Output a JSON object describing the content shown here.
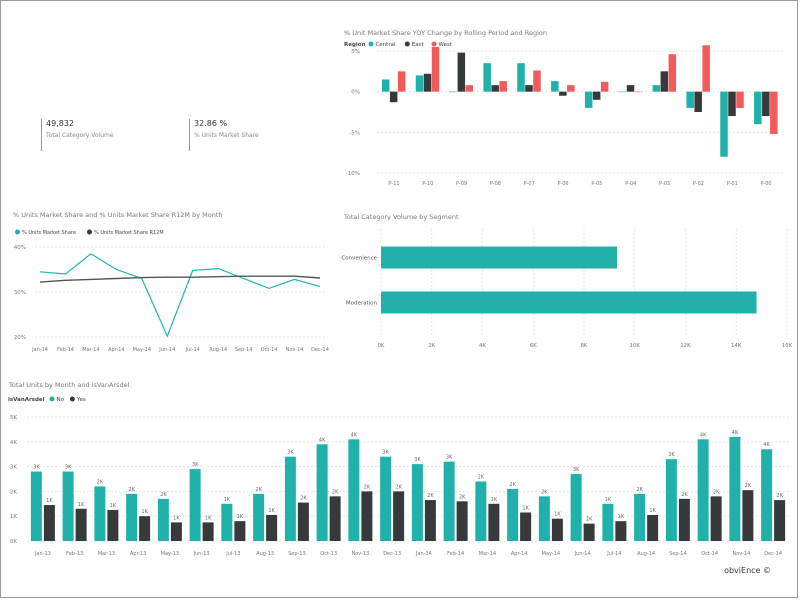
{
  "kpis": [
    {
      "value": "49,832",
      "label": "Total Category Volume"
    },
    {
      "value": "32.86 %",
      "label": "% Units Market Share"
    }
  ],
  "footer": "obviEnce ©",
  "colors": {
    "teal": "#20b2aa",
    "dark": "#373a3a",
    "red": "#f25b5b",
    "gray": "#555555",
    "grid": "#e1e1e1",
    "axis": "#777777"
  },
  "chart_data": [
    {
      "id": "yoy",
      "type": "bar",
      "title": "% Unit Market Share YOY Change by Rolling Period and Region",
      "legend_title": "Region",
      "legend_position": "top-left",
      "categories": [
        "P-11",
        "P-10",
        "P-09",
        "P-08",
        "P-07",
        "P-06",
        "P-05",
        "P-04",
        "P-03",
        "P-02",
        "P-01",
        "P-00"
      ],
      "series": [
        {
          "name": "Central",
          "values": [
            1.5,
            2.0,
            0.0,
            3.5,
            3.5,
            1.3,
            -2.0,
            0.0,
            0.8,
            -2.0,
            -8.0,
            -4.0
          ]
        },
        {
          "name": "East",
          "values": [
            -1.3,
            2.2,
            4.8,
            0.8,
            0.8,
            -0.5,
            -1.0,
            0.8,
            2.5,
            -2.5,
            -3.0,
            -3.0
          ]
        },
        {
          "name": "West",
          "values": [
            2.5,
            5.5,
            0.8,
            1.3,
            2.6,
            0.8,
            1.2,
            0.0,
            4.6,
            5.7,
            -2.0,
            -5.2
          ]
        }
      ],
      "yticks": [
        "5%",
        "0%",
        "-5%",
        "-10%"
      ],
      "ylim": [
        -10,
        5
      ],
      "grid": true
    },
    {
      "id": "share",
      "type": "line",
      "title": "% Units Market Share and % Units Market Share R12M by Month",
      "legend_position": "top-left",
      "x": [
        "Jan-14",
        "Feb-14",
        "Mar-14",
        "Apr-14",
        "May-14",
        "Jun-14",
        "Jul-14",
        "Aug-14",
        "Sep-14",
        "Oct-14",
        "Nov-14",
        "Dec-14"
      ],
      "series": [
        {
          "name": "% Units Market Share",
          "values": [
            34.5,
            34.0,
            38.5,
            35.0,
            33.0,
            20.2,
            34.8,
            35.2,
            33.0,
            30.8,
            32.8,
            31.2
          ]
        },
        {
          "name": "% Units Market Share R12M",
          "values": [
            32.2,
            32.6,
            32.8,
            33.0,
            33.2,
            33.3,
            33.3,
            33.4,
            33.5,
            33.5,
            33.5,
            33.1
          ]
        }
      ],
      "yticks": [
        "40%",
        "30%",
        "20%"
      ],
      "ylim": [
        20,
        40
      ],
      "grid": true
    },
    {
      "id": "segment",
      "type": "bar",
      "orientation": "horizontal",
      "title": "Total Category Volume by Segment",
      "categories": [
        "Convenience",
        "Moderation"
      ],
      "values": [
        9300,
        14800
      ],
      "xticks": [
        "0K",
        "2K",
        "4K",
        "6K",
        "8K",
        "10K",
        "12K",
        "14K",
        "16K"
      ],
      "xlim": [
        0,
        16000
      ],
      "grid": true
    },
    {
      "id": "units",
      "type": "bar",
      "title": "Total Units by Month and isVanArsdel",
      "legend_title": "isVanArsdel",
      "legend_position": "top-left",
      "categories": [
        "Jan-13",
        "Feb-13",
        "Mar-13",
        "Apr-13",
        "May-13",
        "Jun-13",
        "Jul-13",
        "Aug-13",
        "Sep-13",
        "Oct-13",
        "Nov-13",
        "Dec-13",
        "Jan-14",
        "Feb-14",
        "Mar-14",
        "Apr-14",
        "May-14",
        "Jun-14",
        "Jul-14",
        "Aug-14",
        "Sep-14",
        "Oct-14",
        "Nov-14",
        "Dec-14"
      ],
      "series": [
        {
          "name": "No",
          "values": [
            2800,
            2800,
            2200,
            1900,
            1700,
            2900,
            1500,
            1900,
            3400,
            3900,
            4100,
            3400,
            3100,
            3200,
            2400,
            2100,
            1800,
            2700,
            1500,
            1900,
            3300,
            4100,
            4200,
            3700
          ],
          "labels": [
            "3K",
            "3K",
            "2K",
            "2K",
            "2K",
            "3K",
            "1K",
            "2K",
            "3K",
            "4K",
            "4K",
            "3K",
            "3K",
            "3K",
            "2K",
            "2K",
            "2K",
            "3K",
            "1K",
            "2K",
            "3K",
            "4K",
            "4K",
            "4K"
          ]
        },
        {
          "name": "Yes",
          "values": [
            1450,
            1300,
            1250,
            1000,
            750,
            750,
            800,
            1050,
            1550,
            1800,
            2000,
            2000,
            1650,
            1600,
            1500,
            1150,
            900,
            700,
            800,
            1050,
            1700,
            1800,
            2050,
            1650
          ],
          "labels": [
            "1K",
            "1K",
            "1K",
            "1K",
            "1K",
            "1K",
            "1K",
            "1K",
            "2K",
            "2K",
            "2K",
            "2K",
            "2K",
            "2K",
            "1K",
            "1K",
            "1K",
            "1K",
            "1K",
            "1K",
            "2K",
            "2K",
            "2K",
            "2K"
          ]
        }
      ],
      "yticks": [
        "5K",
        "4K",
        "3K",
        "2K",
        "1K",
        "0K"
      ],
      "ylim": [
        0,
        5000
      ],
      "grid": true
    }
  ]
}
